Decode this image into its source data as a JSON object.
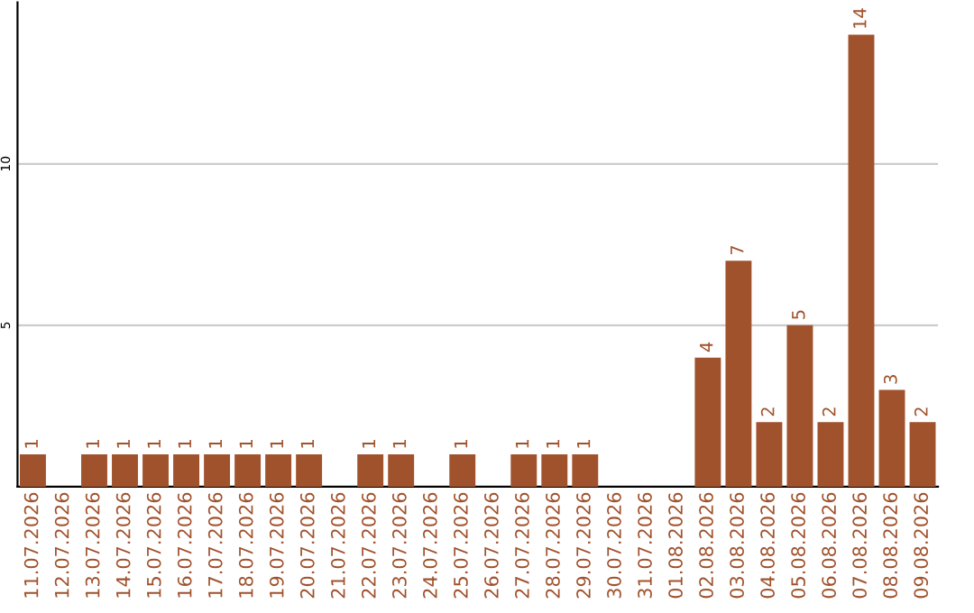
{
  "chart_data": {
    "type": "bar",
    "categories": [
      "11.07.2026",
      "12.07.2026",
      "13.07.2026",
      "14.07.2026",
      "15.07.2026",
      "16.07.2026",
      "17.07.2026",
      "18.07.2026",
      "19.07.2026",
      "20.07.2026",
      "21.07.2026",
      "22.07.2026",
      "23.07.2026",
      "24.07.2026",
      "25.07.2026",
      "26.07.2026",
      "27.07.2026",
      "28.07.2026",
      "29.07.2026",
      "30.07.2026",
      "31.07.2026",
      "01.08.2026",
      "02.08.2026",
      "03.08.2026",
      "04.08.2026",
      "05.08.2026",
      "06.08.2026",
      "07.08.2026",
      "08.08.2026",
      "09.08.2026"
    ],
    "values": [
      1,
      0,
      1,
      1,
      1,
      1,
      1,
      1,
      1,
      1,
      0,
      1,
      1,
      0,
      1,
      0,
      1,
      1,
      1,
      0,
      0,
      0,
      4,
      7,
      2,
      5,
      2,
      14,
      3,
      2
    ],
    "value_labels": [
      "1",
      null,
      "1",
      "1",
      "1",
      "1",
      "1",
      "1",
      "1",
      "1",
      null,
      "1",
      "1",
      null,
      "1",
      null,
      "1",
      "1",
      "1",
      null,
      null,
      null,
      "4",
      "7",
      "2",
      "5",
      "2",
      "14",
      "3",
      "2"
    ],
    "color": "#a0522d",
    "ylim": [
      0,
      15
    ],
    "yticks": [
      5,
      10
    ],
    "grid": "y"
  }
}
